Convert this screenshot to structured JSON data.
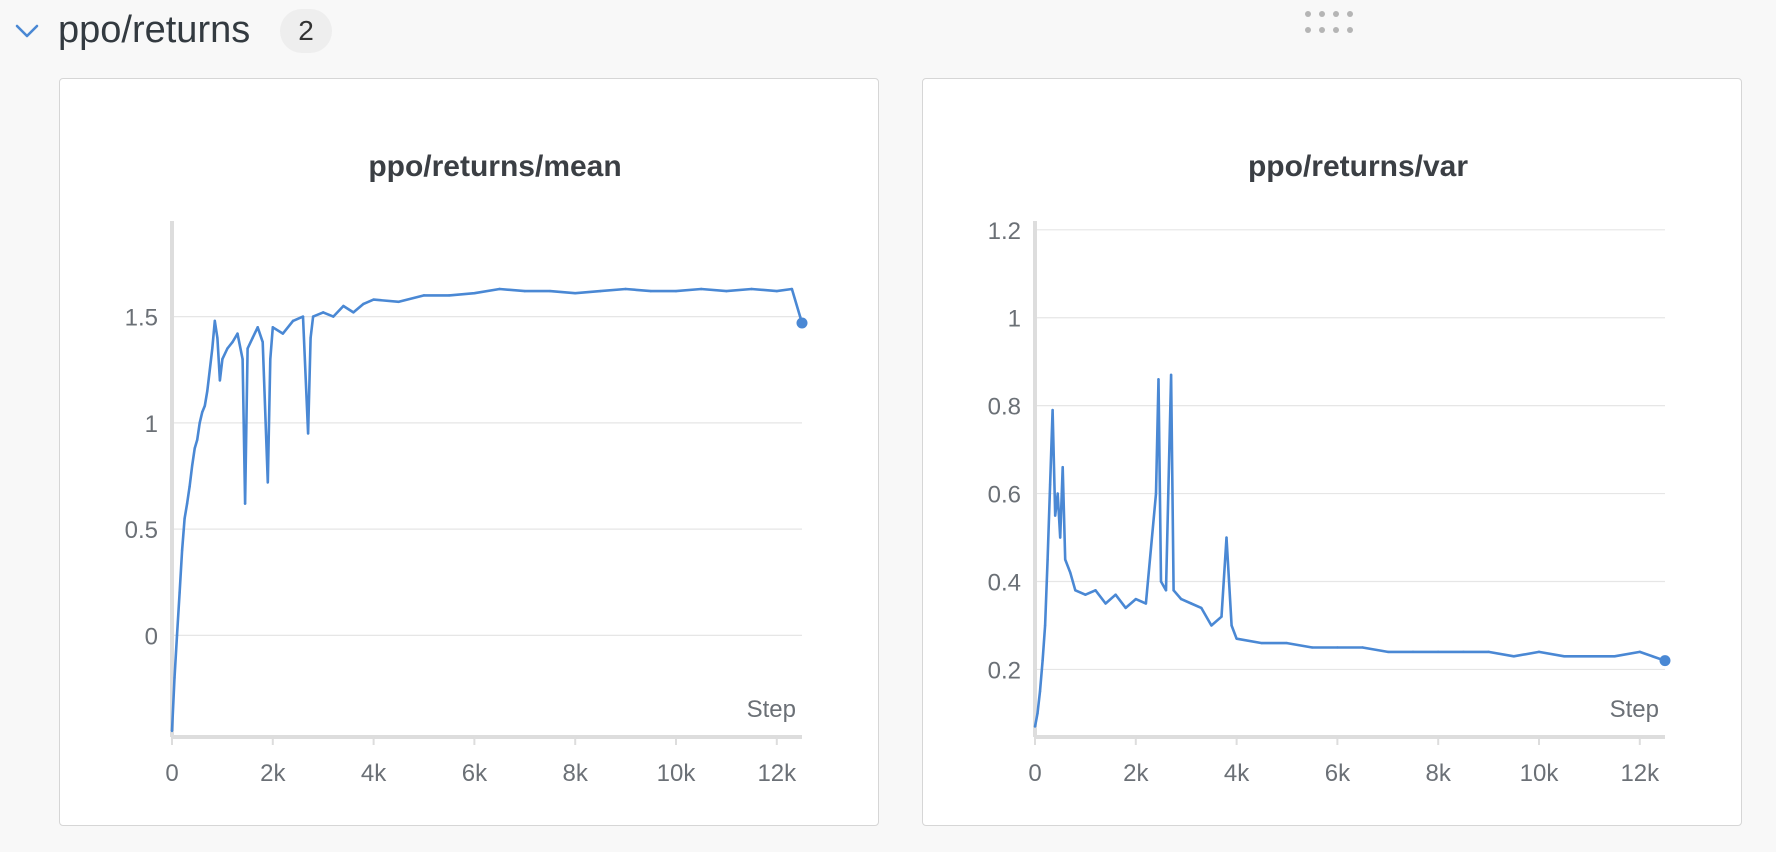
{
  "section": {
    "title": "ppo/returns",
    "count": "2",
    "collapse_icon": "chevron-down-icon",
    "drag_icon": "drag-handle-icon"
  },
  "colors": {
    "series": "#4a88d4",
    "grid": "#e6e6e6",
    "axis": "#dddddd",
    "tick_text": "#6b7076",
    "title_text": "#3b3f44"
  },
  "chart_data": [
    {
      "type": "line",
      "title": "ppo/returns/mean",
      "xlabel": "Step",
      "ylabel": "",
      "xlim": [
        0,
        12500
      ],
      "ylim": [
        -0.45,
        1.95
      ],
      "x_ticks": [
        0,
        2000,
        4000,
        6000,
        8000,
        10000,
        12000
      ],
      "x_tick_labels": [
        "0",
        "2k",
        "4k",
        "6k",
        "8k",
        "10k",
        "12k"
      ],
      "y_ticks": [
        0,
        0.5,
        1,
        1.5
      ],
      "y_tick_labels": [
        "0",
        "0.5",
        "1",
        "1.5"
      ],
      "grid": true,
      "series": [
        {
          "points": [
            [
              0,
              -0.45
            ],
            [
              50,
              -0.2
            ],
            [
              100,
              0.0
            ],
            [
              150,
              0.2
            ],
            [
              200,
              0.4
            ],
            [
              250,
              0.55
            ],
            [
              300,
              0.62
            ],
            [
              350,
              0.7
            ],
            [
              400,
              0.8
            ],
            [
              450,
              0.88
            ],
            [
              500,
              0.92
            ],
            [
              550,
              1.0
            ],
            [
              600,
              1.05
            ],
            [
              650,
              1.08
            ],
            [
              700,
              1.15
            ],
            [
              750,
              1.25
            ],
            [
              800,
              1.35
            ],
            [
              850,
              1.48
            ],
            [
              900,
              1.4
            ],
            [
              950,
              1.2
            ],
            [
              1000,
              1.3
            ],
            [
              1100,
              1.35
            ],
            [
              1200,
              1.38
            ],
            [
              1300,
              1.42
            ],
            [
              1400,
              1.3
            ],
            [
              1450,
              0.62
            ],
            [
              1500,
              1.35
            ],
            [
              1600,
              1.4
            ],
            [
              1700,
              1.45
            ],
            [
              1800,
              1.38
            ],
            [
              1900,
              0.72
            ],
            [
              1950,
              1.3
            ],
            [
              2000,
              1.45
            ],
            [
              2200,
              1.42
            ],
            [
              2400,
              1.48
            ],
            [
              2600,
              1.5
            ],
            [
              2700,
              0.95
            ],
            [
              2750,
              1.4
            ],
            [
              2800,
              1.5
            ],
            [
              3000,
              1.52
            ],
            [
              3200,
              1.5
            ],
            [
              3400,
              1.55
            ],
            [
              3600,
              1.52
            ],
            [
              3800,
              1.56
            ],
            [
              4000,
              1.58
            ],
            [
              4500,
              1.57
            ],
            [
              5000,
              1.6
            ],
            [
              5500,
              1.6
            ],
            [
              6000,
              1.61
            ],
            [
              6500,
              1.63
            ],
            [
              7000,
              1.62
            ],
            [
              7500,
              1.62
            ],
            [
              8000,
              1.61
            ],
            [
              8500,
              1.62
            ],
            [
              9000,
              1.63
            ],
            [
              9500,
              1.62
            ],
            [
              10000,
              1.62
            ],
            [
              10500,
              1.63
            ],
            [
              11000,
              1.62
            ],
            [
              11500,
              1.63
            ],
            [
              12000,
              1.62
            ],
            [
              12300,
              1.63
            ],
            [
              12500,
              1.47
            ]
          ]
        }
      ]
    },
    {
      "type": "line",
      "title": "ppo/returns/var",
      "xlabel": "Step",
      "ylabel": "",
      "xlim": [
        0,
        12500
      ],
      "ylim": [
        0.06,
        1.22
      ],
      "x_ticks": [
        0,
        2000,
        4000,
        6000,
        8000,
        10000,
        12000
      ],
      "x_tick_labels": [
        "0",
        "2k",
        "4k",
        "6k",
        "8k",
        "10k",
        "12k"
      ],
      "y_ticks": [
        0.2,
        0.4,
        0.6,
        0.8,
        1,
        1.2
      ],
      "y_tick_labels": [
        "0.2",
        "0.4",
        "0.6",
        "0.8",
        "1",
        "1.2"
      ],
      "grid": true,
      "series": [
        {
          "points": [
            [
              0,
              0.07
            ],
            [
              50,
              0.1
            ],
            [
              100,
              0.15
            ],
            [
              150,
              0.22
            ],
            [
              200,
              0.3
            ],
            [
              250,
              0.45
            ],
            [
              300,
              0.62
            ],
            [
              350,
              0.79
            ],
            [
              400,
              0.55
            ],
            [
              450,
              0.6
            ],
            [
              500,
              0.5
            ],
            [
              550,
              0.66
            ],
            [
              600,
              0.45
            ],
            [
              700,
              0.42
            ],
            [
              800,
              0.38
            ],
            [
              1000,
              0.37
            ],
            [
              1200,
              0.38
            ],
            [
              1400,
              0.35
            ],
            [
              1600,
              0.37
            ],
            [
              1800,
              0.34
            ],
            [
              2000,
              0.36
            ],
            [
              2200,
              0.35
            ],
            [
              2400,
              0.6
            ],
            [
              2450,
              0.86
            ],
            [
              2500,
              0.4
            ],
            [
              2600,
              0.38
            ],
            [
              2700,
              0.87
            ],
            [
              2750,
              0.38
            ],
            [
              2900,
              0.36
            ],
            [
              3100,
              0.35
            ],
            [
              3300,
              0.34
            ],
            [
              3500,
              0.3
            ],
            [
              3700,
              0.32
            ],
            [
              3800,
              0.5
            ],
            [
              3900,
              0.3
            ],
            [
              4000,
              0.27
            ],
            [
              4500,
              0.26
            ],
            [
              5000,
              0.26
            ],
            [
              5500,
              0.25
            ],
            [
              6000,
              0.25
            ],
            [
              6500,
              0.25
            ],
            [
              7000,
              0.24
            ],
            [
              7500,
              0.24
            ],
            [
              8000,
              0.24
            ],
            [
              8500,
              0.24
            ],
            [
              9000,
              0.24
            ],
            [
              9500,
              0.23
            ],
            [
              10000,
              0.24
            ],
            [
              10500,
              0.23
            ],
            [
              11000,
              0.23
            ],
            [
              11500,
              0.23
            ],
            [
              12000,
              0.24
            ],
            [
              12500,
              0.22
            ]
          ]
        }
      ]
    }
  ]
}
